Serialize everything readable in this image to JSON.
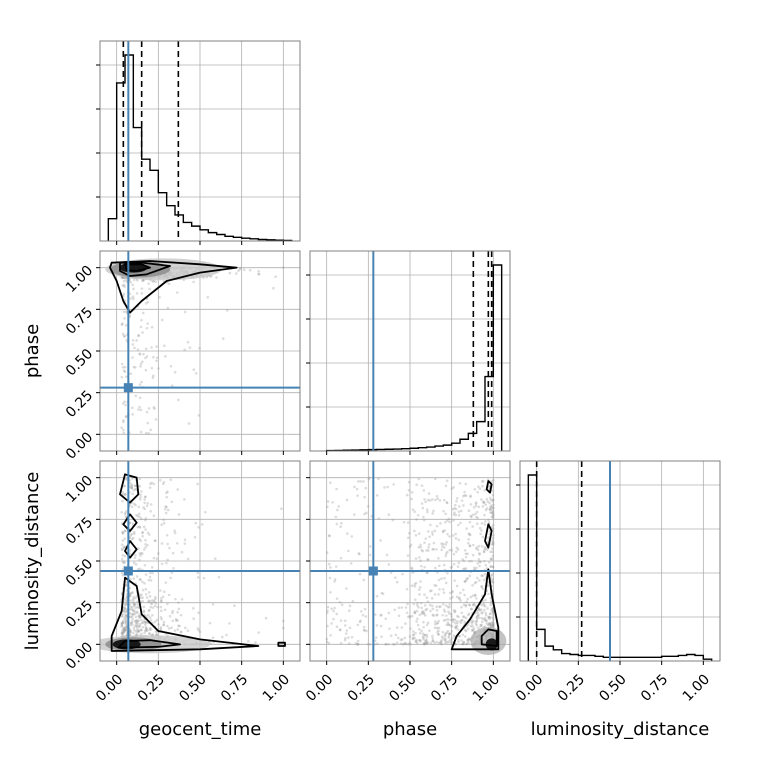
{
  "chart_data": {
    "type": "corner",
    "parameters": [
      "geocent_time",
      "phase",
      "luminosity_distance"
    ],
    "range": [
      -0.1,
      1.1
    ],
    "ticks": [
      0.0,
      0.25,
      0.5,
      0.75,
      1.0
    ],
    "tick_labels": [
      "0.00",
      "0.25",
      "0.50",
      "0.75",
      "1.00"
    ],
    "grid": true,
    "colors": {
      "truth": "#4682b4",
      "hist": "#000000",
      "scatter": "#9a9a9a"
    },
    "truths": {
      "geocent_time": 0.07,
      "phase": 0.28,
      "luminosity_distance": 0.44
    },
    "quantiles": {
      "geocent_time": [
        0.04,
        0.15,
        0.37
      ],
      "phase": [
        0.88,
        0.97,
        0.99
      ],
      "luminosity_distance": [
        0.0,
        0.27,
        null
      ]
    },
    "histograms": {
      "geocent_time": {
        "bin_edges": [
          -0.05,
          0.0,
          0.05,
          0.1,
          0.15,
          0.2,
          0.25,
          0.3,
          0.35,
          0.4,
          0.45,
          0.5,
          0.55,
          0.6,
          0.65,
          0.7,
          0.75,
          0.8,
          0.85,
          0.9,
          0.95,
          1.0,
          1.05
        ],
        "counts": [
          0.12,
          0.85,
          1.0,
          0.61,
          0.44,
          0.38,
          0.26,
          0.19,
          0.14,
          0.1,
          0.08,
          0.06,
          0.045,
          0.035,
          0.025,
          0.02,
          0.015,
          0.012,
          0.008,
          0.006,
          0.004,
          0.003
        ]
      },
      "phase": {
        "bin_edges": [
          0.0,
          0.05,
          0.1,
          0.15,
          0.2,
          0.25,
          0.3,
          0.35,
          0.4,
          0.45,
          0.5,
          0.55,
          0.6,
          0.65,
          0.7,
          0.75,
          0.8,
          0.85,
          0.9,
          0.95,
          1.0,
          1.05
        ],
        "counts": [
          0.002,
          0.003,
          0.004,
          0.005,
          0.006,
          0.007,
          0.008,
          0.009,
          0.01,
          0.012,
          0.014,
          0.017,
          0.02,
          0.025,
          0.03,
          0.04,
          0.06,
          0.09,
          0.15,
          0.38,
          0.95
        ]
      },
      "luminosity_distance": {
        "bin_edges": [
          -0.05,
          0.0,
          0.05,
          0.1,
          0.15,
          0.2,
          0.25,
          0.3,
          0.35,
          0.4,
          0.45,
          0.5,
          0.55,
          0.6,
          0.65,
          0.7,
          0.75,
          0.8,
          0.85,
          0.9,
          0.95,
          1.0,
          1.05
        ],
        "counts": [
          1.0,
          0.17,
          0.08,
          0.06,
          0.04,
          0.035,
          0.03,
          0.03,
          0.025,
          0.02,
          0.02,
          0.02,
          0.02,
          0.02,
          0.02,
          0.02,
          0.025,
          0.025,
          0.03,
          0.035,
          0.03,
          0.01
        ]
      }
    },
    "density_peaks": {
      "geocent_time-phase": [
        0.1,
        1.0
      ],
      "geocent_time-luminosity_distance": [
        0.07,
        0.0
      ],
      "phase-luminosity_distance": [
        0.99,
        0.0
      ]
    }
  }
}
